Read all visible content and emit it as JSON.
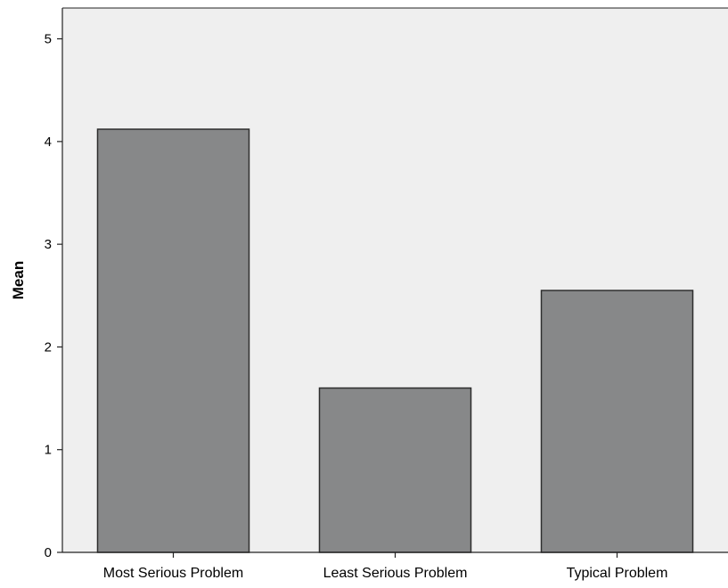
{
  "chart_data": {
    "type": "bar",
    "categories": [
      "Most Serious Problem",
      "Least Serious Problem",
      "Typical Problem"
    ],
    "values": [
      4.12,
      1.6,
      2.55
    ],
    "xlabel": "",
    "ylabel": "Mean",
    "ylim": [
      0,
      5.3
    ],
    "yticks": [
      0,
      1,
      2,
      3,
      4,
      5
    ],
    "grid": false,
    "legend": "none",
    "colors": {
      "plot_background": "#efefef",
      "bar_fill": "#878889",
      "bar_stroke": "#2e2e2e",
      "axis": "#222222"
    }
  }
}
